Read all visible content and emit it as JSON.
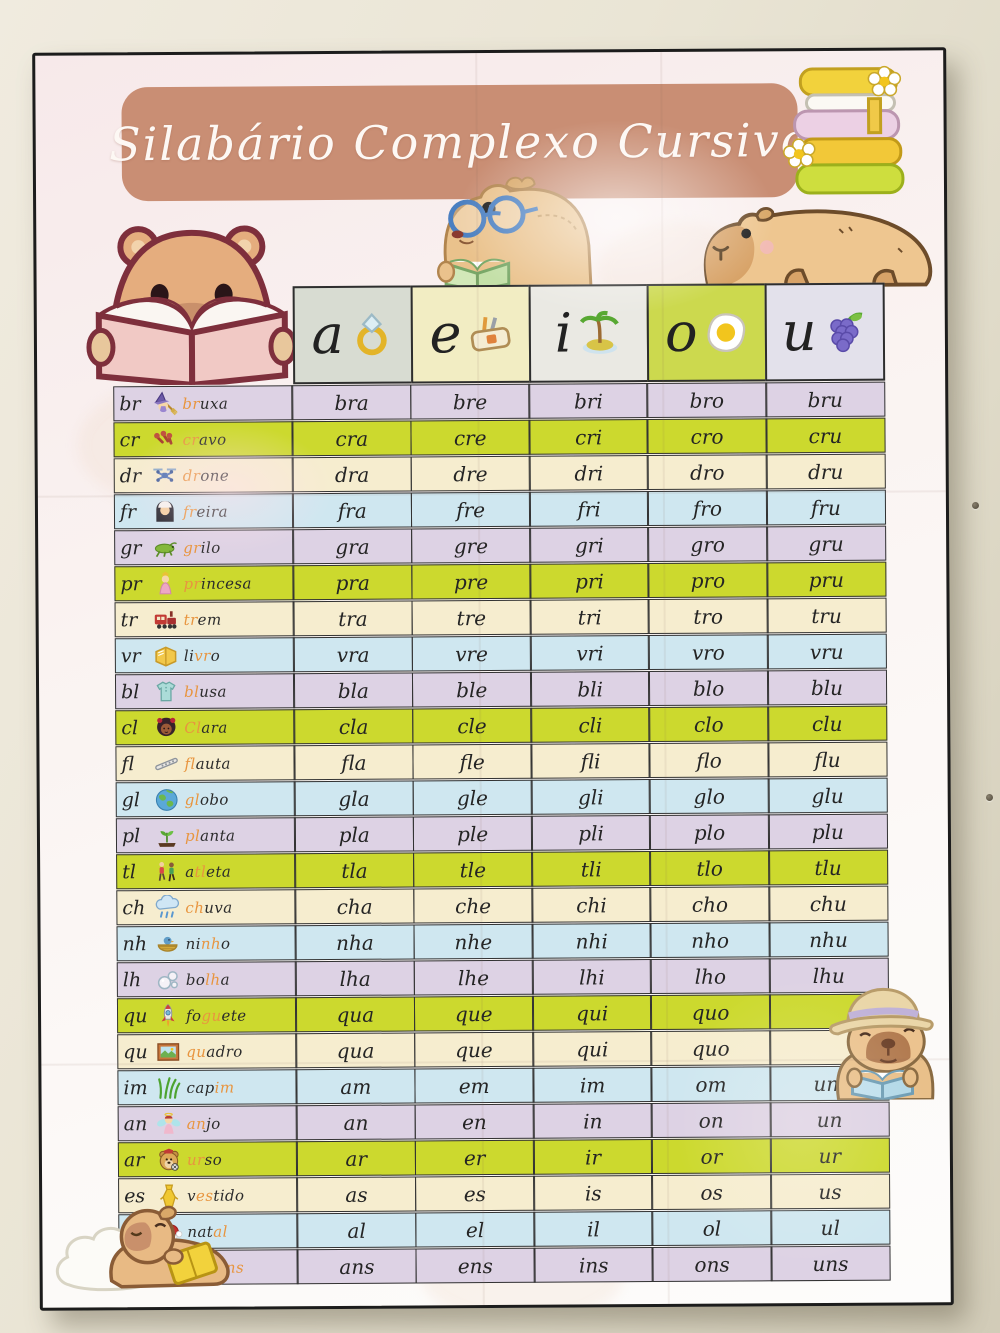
{
  "poster": {
    "title": "Silabário Complexo Cursivo",
    "highlight_color": "#e8953f",
    "banner_color": "#c98e74",
    "row_colors": {
      "lavender": "#ddd2e4",
      "yellow": "#ccd92e",
      "cream": "#f6edcf",
      "blue": "#cfe7f0"
    }
  },
  "header": {
    "vowels": [
      {
        "letter": "a",
        "icon": "ring-icon",
        "bg": "#d8dcd2"
      },
      {
        "letter": "e",
        "icon": "pencil-case-icon",
        "bg": "#f2edc3"
      },
      {
        "letter": "i",
        "icon": "island-icon",
        "bg": "#eae9e3"
      },
      {
        "letter": "o",
        "icon": "fried-egg-icon",
        "bg": "#ccd94e"
      },
      {
        "letter": "u",
        "icon": "grapes-icon",
        "bg": "#e3e1eb"
      }
    ]
  },
  "rows": [
    {
      "cluster": "br",
      "icon": "witch-icon",
      "word": [
        "",
        "br",
        "uxa"
      ],
      "color": "lavender",
      "syllables": [
        "bra",
        "bre",
        "bri",
        "bro",
        "bru"
      ]
    },
    {
      "cluster": "cr",
      "icon": "clove-icon",
      "word": [
        "",
        "cr",
        "avo"
      ],
      "color": "yellow",
      "syllables": [
        "cra",
        "cre",
        "cri",
        "cro",
        "cru"
      ]
    },
    {
      "cluster": "dr",
      "icon": "drone-icon",
      "word": [
        "",
        "dr",
        "one"
      ],
      "color": "cream",
      "syllables": [
        "dra",
        "dre",
        "dri",
        "dro",
        "dru"
      ]
    },
    {
      "cluster": "fr",
      "icon": "nun-icon",
      "word": [
        "",
        "fr",
        "eira"
      ],
      "color": "blue",
      "syllables": [
        "fra",
        "fre",
        "fri",
        "fro",
        "fru"
      ]
    },
    {
      "cluster": "gr",
      "icon": "grasshopper-icon",
      "word": [
        "",
        "gr",
        "ilo"
      ],
      "color": "lavender",
      "syllables": [
        "gra",
        "gre",
        "gri",
        "gro",
        "gru"
      ]
    },
    {
      "cluster": "pr",
      "icon": "princess-icon",
      "word": [
        "",
        "pr",
        "incesa"
      ],
      "color": "yellow",
      "syllables": [
        "pra",
        "pre",
        "pri",
        "pro",
        "pru"
      ]
    },
    {
      "cluster": "tr",
      "icon": "train-icon",
      "word": [
        "",
        "tr",
        "em"
      ],
      "color": "cream",
      "syllables": [
        "tra",
        "tre",
        "tri",
        "tro",
        "tru"
      ]
    },
    {
      "cluster": "vr",
      "icon": "book-icon",
      "word": [
        "li",
        "vr",
        "o"
      ],
      "color": "blue",
      "syllables": [
        "vra",
        "vre",
        "vri",
        "vro",
        "vru"
      ]
    },
    {
      "cluster": "bl",
      "icon": "blouse-icon",
      "word": [
        "",
        "bl",
        "usa"
      ],
      "color": "lavender",
      "syllables": [
        "bla",
        "ble",
        "bli",
        "blo",
        "blu"
      ]
    },
    {
      "cluster": "cl",
      "icon": "girl-icon",
      "word": [
        "",
        "Cl",
        "ara"
      ],
      "color": "yellow",
      "syllables": [
        "cla",
        "cle",
        "cli",
        "clo",
        "clu"
      ]
    },
    {
      "cluster": "fl",
      "icon": "flute-icon",
      "word": [
        "",
        "fl",
        "auta"
      ],
      "color": "cream",
      "syllables": [
        "fla",
        "fle",
        "fli",
        "flo",
        "flu"
      ]
    },
    {
      "cluster": "gl",
      "icon": "globe-icon",
      "word": [
        "",
        "gl",
        "obo"
      ],
      "color": "blue",
      "syllables": [
        "gla",
        "gle",
        "gli",
        "glo",
        "glu"
      ]
    },
    {
      "cluster": "pl",
      "icon": "plant-icon",
      "word": [
        "",
        "pl",
        "anta"
      ],
      "color": "lavender",
      "syllables": [
        "pla",
        "ple",
        "pli",
        "plo",
        "plu"
      ]
    },
    {
      "cluster": "tl",
      "icon": "athletes-icon",
      "word": [
        "a",
        "tl",
        "eta"
      ],
      "color": "yellow",
      "syllables": [
        "tla",
        "tle",
        "tli",
        "tlo",
        "tlu"
      ]
    },
    {
      "cluster": "ch",
      "icon": "rain-cloud-icon",
      "word": [
        "",
        "ch",
        "uva"
      ],
      "color": "cream",
      "syllables": [
        "cha",
        "che",
        "chi",
        "cho",
        "chu"
      ]
    },
    {
      "cluster": "nh",
      "icon": "nest-icon",
      "word": [
        "ni",
        "nh",
        "o"
      ],
      "color": "blue",
      "syllables": [
        "nha",
        "nhe",
        "nhi",
        "nho",
        "nhu"
      ]
    },
    {
      "cluster": "lh",
      "icon": "bubbles-icon",
      "word": [
        "bo",
        "lh",
        "a"
      ],
      "color": "lavender",
      "syllables": [
        "lha",
        "lhe",
        "lhi",
        "lho",
        "lhu"
      ]
    },
    {
      "cluster": "qu",
      "icon": "rocket-icon",
      "word": [
        "fo",
        "gu",
        "ete"
      ],
      "color": "yellow",
      "syllables": [
        "qua",
        "que",
        "qui",
        "quo",
        ""
      ]
    },
    {
      "cluster": "qu",
      "icon": "picture-frame-icon",
      "word": [
        "",
        "qu",
        "adro"
      ],
      "color": "cream",
      "syllables": [
        "qua",
        "que",
        "qui",
        "quo",
        ""
      ]
    },
    {
      "cluster": "im",
      "icon": "grass-icon",
      "word": [
        "cap",
        "im",
        ""
      ],
      "color": "blue",
      "syllables": [
        "am",
        "em",
        "im",
        "om",
        "um"
      ]
    },
    {
      "cluster": "an",
      "icon": "angel-icon",
      "word": [
        "",
        "an",
        "jo"
      ],
      "color": "lavender",
      "syllables": [
        "an",
        "en",
        "in",
        "on",
        "un"
      ]
    },
    {
      "cluster": "ar",
      "icon": "bear-icon",
      "word": [
        "",
        "ur",
        "so"
      ],
      "color": "yellow",
      "syllables": [
        "ar",
        "er",
        "ir",
        "or",
        "ur"
      ]
    },
    {
      "cluster": "es",
      "icon": "dress-icon",
      "word": [
        "v",
        "es",
        "tido"
      ],
      "color": "cream",
      "syllables": [
        "as",
        "es",
        "is",
        "os",
        "us"
      ]
    },
    {
      "cluster": "al",
      "icon": "santa-hat-icon",
      "word": [
        "nat",
        "al",
        ""
      ],
      "color": "blue",
      "syllables": [
        "al",
        "el",
        "il",
        "ol",
        "ul"
      ]
    },
    {
      "cluster": "ns",
      "icon": "cloud-icon",
      "word": [
        "nuve",
        "ns",
        ""
      ],
      "color": "lavender",
      "syllables": [
        "ans",
        "ens",
        "ins",
        "ons",
        "uns"
      ]
    }
  ],
  "decor": {
    "items": [
      "capybara-reading-pink-book-illustration",
      "capybara-with-glasses-reading-green-book-illustration",
      "capybara-lying-down-illustration",
      "stack-of-books-with-flowers-illustration",
      "capybara-with-hat-reading-blue-book-illustration",
      "capybara-on-pillow-reading-yellow-book-illustration"
    ]
  }
}
